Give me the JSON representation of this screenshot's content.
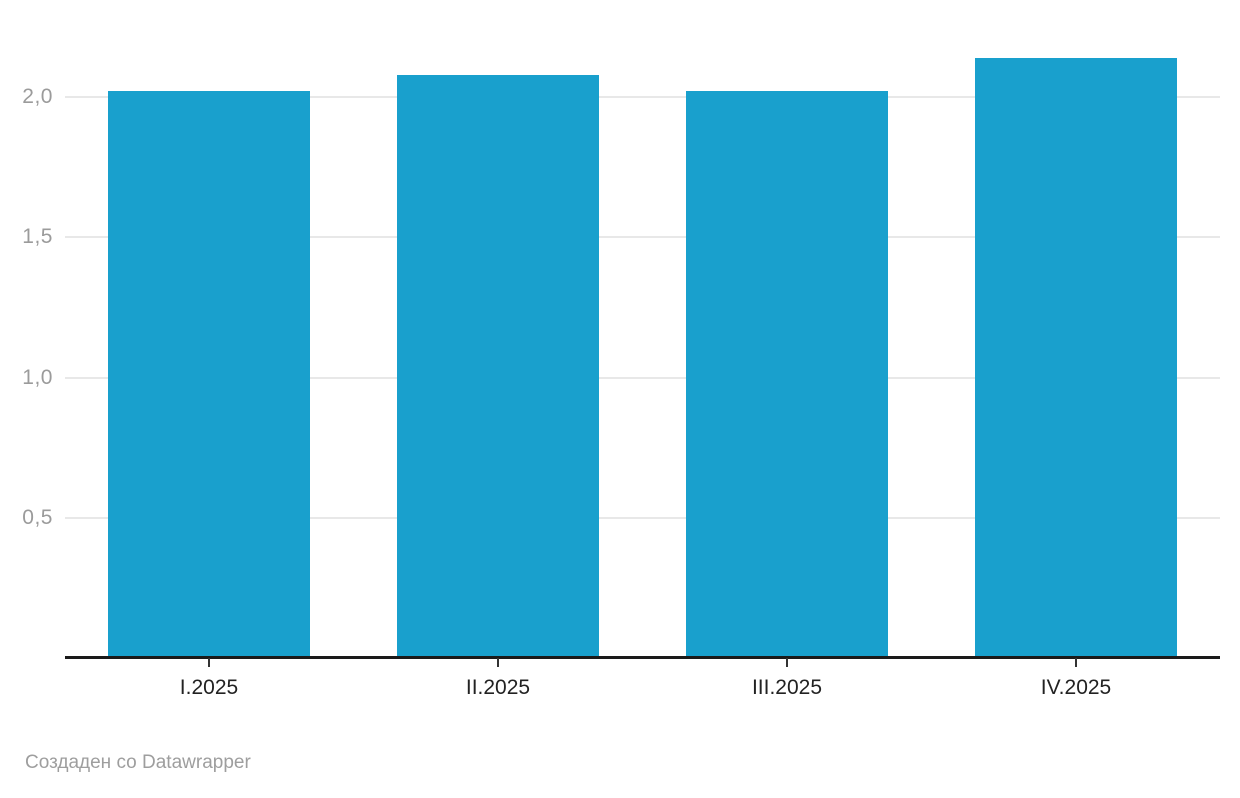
{
  "chart_data": {
    "type": "bar",
    "categories": [
      "I.2025",
      "II.2025",
      "III.2025",
      "IV.2025"
    ],
    "values": [
      2.02,
      2.08,
      2.02,
      2.14
    ],
    "title": "",
    "xlabel": "",
    "ylabel": "",
    "ylim": [
      0,
      2.35
    ],
    "yticks": [
      0.5,
      1.0,
      1.5,
      2.0
    ],
    "ytick_labels": [
      "0,5",
      "1,0",
      "1,5",
      "2,0"
    ],
    "grid": true,
    "legend": "none",
    "bar_color": "#19a0cd"
  },
  "colors": {
    "bar": "#19a0cd",
    "gridline": "#e8e8e8",
    "axis_line": "#1a1a1a",
    "y_tick_label": "#9b9b9b",
    "x_tick_label": "#222222",
    "footer_text": "#9e9e9e",
    "background": "#ffffff"
  },
  "footer": {
    "attribution": "Создаден со Datawrapper"
  }
}
